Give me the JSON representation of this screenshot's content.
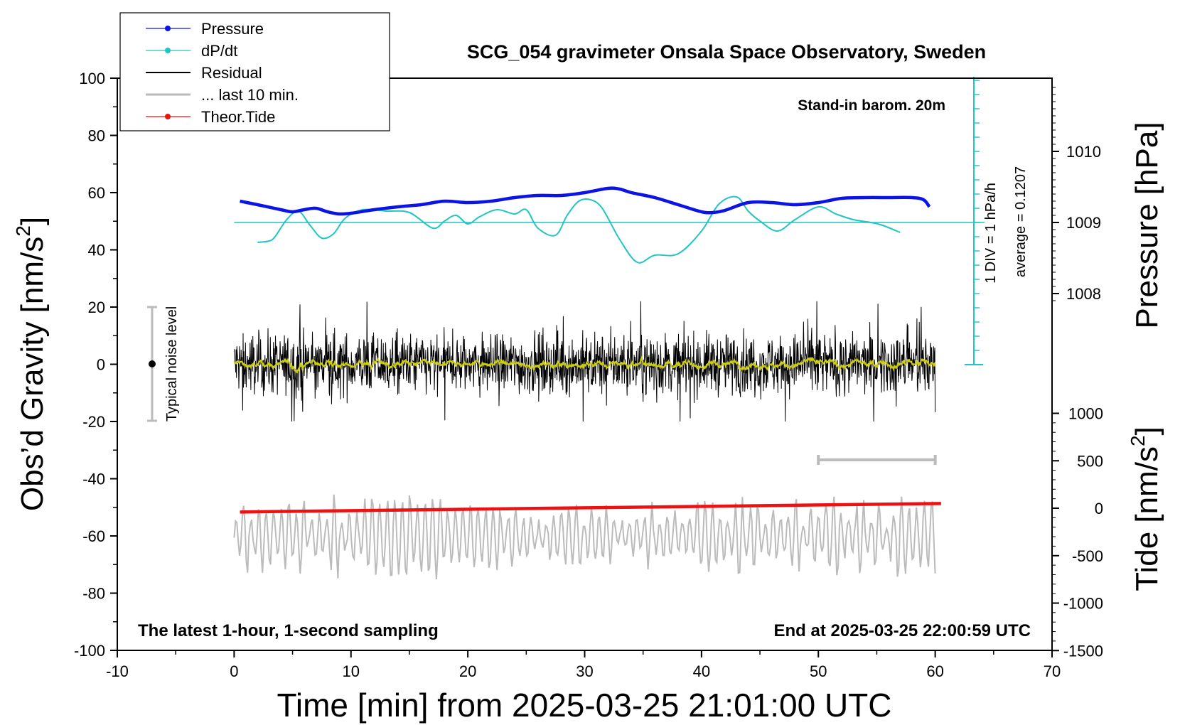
{
  "chart_data": {
    "type": "line",
    "title": "SCG_054 gravimeter Onsala Space Observatory, Sweden",
    "xlabel": "Time [min] from 2025-03-25 21:01:00 UTC",
    "ylabel_left": "Obs’d Gravity [nm/s",
    "ylabel_right_top": "Pressure [hPa]",
    "ylabel_right_bottom": "Tide [nm/s",
    "unit_sup": "2",
    "xlim": [
      -10,
      70
    ],
    "ylim": [
      -100,
      100
    ],
    "pressure_range": [
      1007,
      1011
    ],
    "tide_range": [
      -1500,
      1500
    ],
    "x_ticks": [
      "-10",
      "0",
      "10",
      "20",
      "30",
      "40",
      "50",
      "60",
      "70"
    ],
    "x_tick_values": [
      -10,
      0,
      10,
      20,
      30,
      40,
      50,
      60,
      70
    ],
    "y_ticks": [
      "100",
      "80",
      "60",
      "40",
      "20",
      "0",
      "-20",
      "-40",
      "-60",
      "-80",
      "-100"
    ],
    "y_tick_values": [
      100,
      80,
      60,
      40,
      20,
      0,
      -20,
      -40,
      -60,
      -80,
      -100
    ],
    "pressure_ticks": [
      "1010",
      "1009",
      "1008"
    ],
    "pressure_tick_values": [
      1010,
      1009,
      1008
    ],
    "tide_ticks": [
      "1000",
      "500",
      "0",
      "-500",
      "-1000",
      "-1500"
    ],
    "tide_tick_values": [
      1000,
      500,
      0,
      -500,
      -1000,
      -1500
    ],
    "legend": [
      "Pressure",
      "dP/dt",
      "Residual",
      "... last 10 min.",
      "Theor.Tide"
    ],
    "annotations": {
      "stand_in": "Stand-in barom. 20m",
      "div": "1 DIV = 1 hPa/h",
      "average": "average = 0.1207",
      "noise": "Typical noise level",
      "bottom_left": "The latest 1-hour, 1-second sampling",
      "bottom_right": "End at 2025-03-25 22:00:59 UTC"
    },
    "colors": {
      "pressure": "#0a14e6",
      "dpdt": "#22c4c4",
      "residual": "#000000",
      "residual_smooth": "#cccc10",
      "last10": "#bbbbbb",
      "tide": "#ee1111"
    },
    "series": [
      {
        "name": "Pressure",
        "unit": "hPa",
        "x": [
          0.5,
          2,
          4,
          5,
          6,
          7,
          8,
          9,
          10,
          12,
          14,
          16,
          18,
          20,
          22,
          24,
          26,
          28,
          30,
          32,
          33,
          34,
          36,
          38,
          40,
          41,
          42,
          44,
          46,
          48,
          50,
          52,
          54,
          56,
          58,
          59,
          59.5
        ],
        "values": [
          1009.3,
          1009.25,
          1009.18,
          1009.15,
          1009.18,
          1009.2,
          1009.15,
          1009.12,
          1009.13,
          1009.18,
          1009.22,
          1009.25,
          1009.3,
          1009.28,
          1009.3,
          1009.35,
          1009.38,
          1009.38,
          1009.42,
          1009.48,
          1009.47,
          1009.42,
          1009.35,
          1009.25,
          1009.15,
          1009.14,
          1009.17,
          1009.28,
          1009.28,
          1009.25,
          1009.28,
          1009.34,
          1009.35,
          1009.35,
          1009.35,
          1009.32,
          1009.22
        ]
      },
      {
        "name": "dP/dt",
        "unit": "hPa/h (baseline 1009 hPa)",
        "x": [
          2,
          3,
          3.5,
          4.5,
          5.5,
          6.5,
          7.5,
          8.5,
          9.5,
          11,
          13,
          15,
          17,
          18,
          19,
          20,
          21,
          22.5,
          24,
          25,
          26,
          27.5,
          28.5,
          29.5,
          30.5,
          31.5,
          33,
          34.5,
          36,
          38,
          40,
          41.5,
          43,
          44,
          45,
          46.5,
          48,
          50,
          51.5,
          53,
          54.5,
          55.5,
          57
        ],
        "values": [
          -1.4,
          -1.3,
          -1.0,
          0.2,
          0.8,
          -0.2,
          -1.1,
          -0.8,
          0.3,
          0.9,
          0.8,
          0.7,
          -0.4,
          0.1,
          0.5,
          -0.1,
          0.4,
          0.9,
          0.6,
          0.9,
          -0.4,
          -0.9,
          0.5,
          1.5,
          1.6,
          1.0,
          -1.2,
          -2.8,
          -2.3,
          -2.2,
          -0.6,
          1.3,
          1.8,
          0.8,
          0.1,
          -0.6,
          0.2,
          1.1,
          0.6,
          0.2,
          0.0,
          -0.2,
          -0.7
        ]
      },
      {
        "name": "Residual",
        "unit": "nm/s²",
        "x": [
          0,
          60
        ],
        "values_range": [
          -20,
          22
        ]
      },
      {
        "name": "... last 10 min.",
        "unit": "nm/s² (plotted with -60 offset)",
        "x": [
          0,
          60
        ],
        "values_range": [
          -79,
          -45
        ]
      },
      {
        "name": "Theor.Tide",
        "unit": "nm/s²",
        "x": [
          0.5,
          60.5
        ],
        "values": [
          -40,
          50
        ]
      }
    ],
    "last10_scale_bar": {
      "x": [
        50,
        60
      ]
    }
  }
}
